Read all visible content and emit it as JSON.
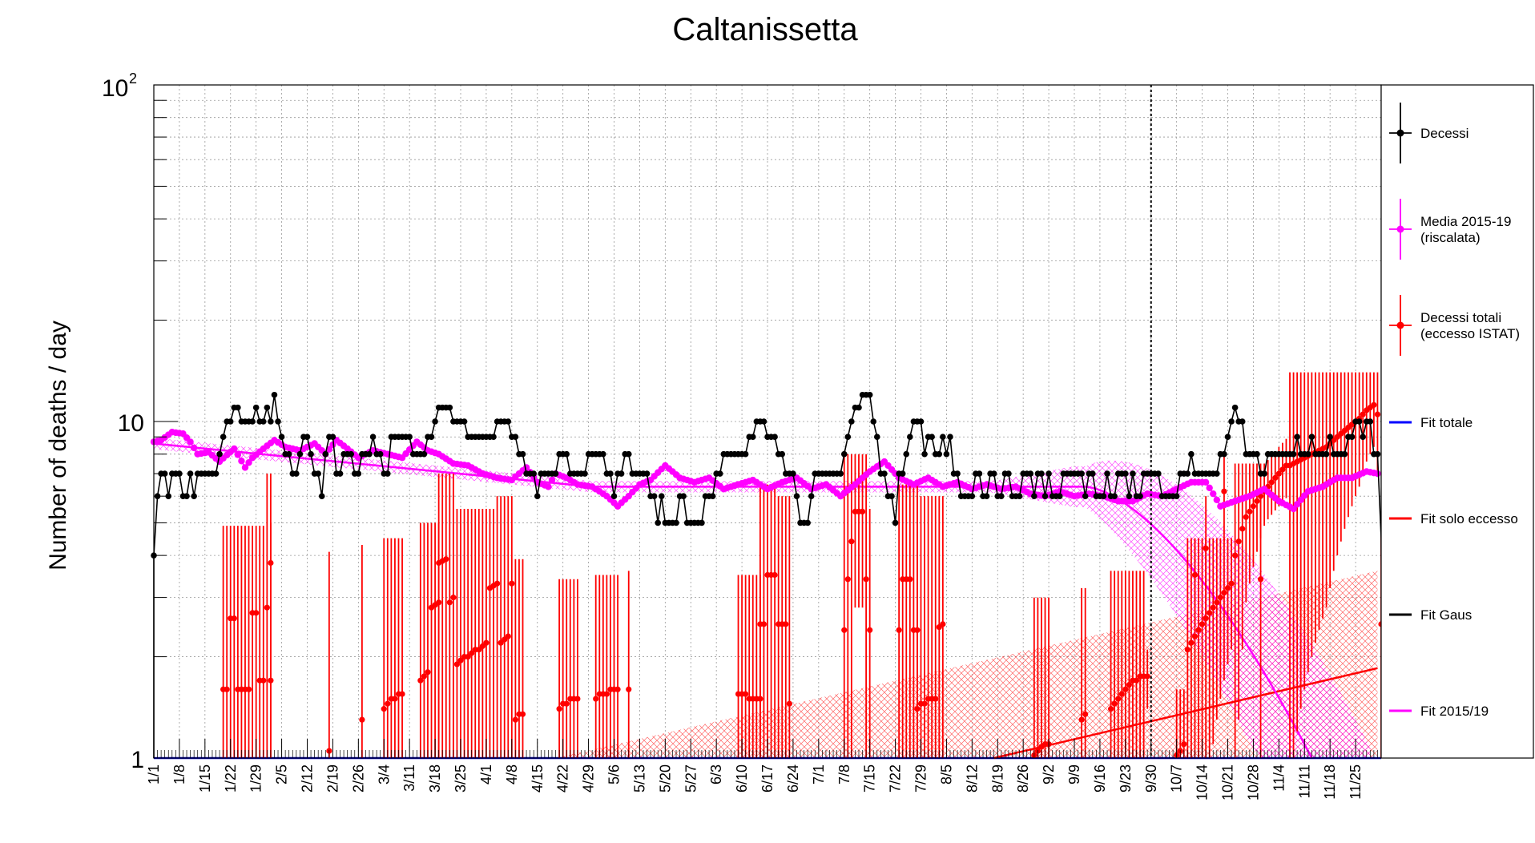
{
  "chart_data": {
    "type": "scatter",
    "title": "Caltanissetta",
    "ylabel": "Number of deaths / day",
    "xlabel": "",
    "yscale": "log",
    "ylim": [
      1,
      100
    ],
    "xlim": [
      0,
      336
    ],
    "ytick_labels": {
      "base": "10",
      "exp": "2",
      "ten": "10",
      "one": "1"
    },
    "grid": true,
    "legend_position": "right",
    "vertical_marker_day": 273,
    "x_ticks": [
      "1/1",
      "1/8",
      "1/15",
      "1/22",
      "1/29",
      "2/5",
      "2/12",
      "2/19",
      "2/26",
      "3/4",
      "3/11",
      "3/18",
      "3/25",
      "4/1",
      "4/8",
      "4/15",
      "4/22",
      "4/29",
      "5/6",
      "5/13",
      "5/20",
      "5/27",
      "6/3",
      "6/10",
      "6/17",
      "6/24",
      "7/1",
      "7/8",
      "7/15",
      "7/22",
      "7/29",
      "8/5",
      "8/12",
      "8/19",
      "8/26",
      "9/2",
      "9/9",
      "9/16",
      "9/23",
      "9/30",
      "10/7",
      "10/14",
      "10/21",
      "10/28",
      "11/4",
      "11/11",
      "11/18",
      "11/25"
    ],
    "colors": {
      "decessi": "#000000",
      "media": "#ff00ff",
      "eccesso": "#ff0000",
      "fit_totale": "#0000ff",
      "fit_eccesso": "#ff0000",
      "fit_gaus": "#000000",
      "fit_2015": "#ff00ff"
    },
    "legend": [
      {
        "key": "decessi",
        "lines": [
          "Decessi"
        ],
        "style": "marker"
      },
      {
        "key": "media",
        "lines": [
          "Media 2015-19",
          "(riscalata)"
        ],
        "style": "marker"
      },
      {
        "key": "eccesso",
        "lines": [
          "Decessi totali",
          "(eccesso ISTAT)"
        ],
        "style": "marker"
      },
      {
        "key": "fit_totale",
        "lines": [
          "Fit totale"
        ],
        "style": "line"
      },
      {
        "key": "fit_eccesso",
        "lines": [
          "Fit solo eccesso"
        ],
        "style": "line"
      },
      {
        "key": "fit_gaus",
        "lines": [
          "Fit Gaus"
        ],
        "style": "line"
      },
      {
        "key": "fit_2015",
        "lines": [
          "Fit 2015/19"
        ],
        "style": "line"
      }
    ],
    "decessi_segments": [
      [
        0,
        4
      ],
      [
        1,
        6
      ],
      [
        2,
        7
      ],
      [
        4,
        6
      ],
      [
        5,
        7
      ],
      [
        8,
        6
      ],
      [
        10,
        7
      ],
      [
        11,
        6
      ],
      [
        12,
        7
      ],
      [
        18,
        8
      ],
      [
        19,
        9
      ],
      [
        20,
        10
      ],
      [
        22,
        11
      ],
      [
        24,
        10
      ],
      [
        28,
        11
      ],
      [
        29,
        10
      ],
      [
        31,
        11
      ],
      [
        32,
        10
      ],
      [
        33,
        12
      ],
      [
        34,
        10
      ],
      [
        35,
        9
      ],
      [
        36,
        8
      ],
      [
        38,
        7
      ],
      [
        40,
        8
      ],
      [
        41,
        9
      ],
      [
        43,
        8
      ],
      [
        44,
        7
      ],
      [
        46,
        6
      ],
      [
        47,
        8
      ],
      [
        48,
        9
      ],
      [
        50,
        7
      ],
      [
        52,
        8
      ],
      [
        55,
        7
      ],
      [
        57,
        8
      ],
      [
        60,
        9
      ],
      [
        61,
        8
      ],
      [
        63,
        7
      ],
      [
        65,
        9
      ],
      [
        71,
        8
      ],
      [
        75,
        9
      ],
      [
        77,
        10
      ],
      [
        78,
        11
      ],
      [
        82,
        10
      ],
      [
        86,
        9
      ],
      [
        94,
        10
      ],
      [
        98,
        9
      ],
      [
        100,
        8
      ],
      [
        102,
        7
      ],
      [
        105,
        6
      ],
      [
        106,
        7
      ],
      [
        108,
        7
      ],
      [
        111,
        8
      ],
      [
        114,
        7
      ],
      [
        119,
        8
      ],
      [
        124,
        7
      ],
      [
        126,
        6
      ],
      [
        127,
        7
      ],
      [
        129,
        8
      ],
      [
        131,
        7
      ],
      [
        136,
        6
      ],
      [
        138,
        5
      ],
      [
        139,
        6
      ],
      [
        140,
        5
      ],
      [
        144,
        6
      ],
      [
        146,
        5
      ],
      [
        151,
        6
      ],
      [
        154,
        7
      ],
      [
        156,
        8
      ],
      [
        163,
        9
      ],
      [
        165,
        10
      ],
      [
        168,
        9
      ],
      [
        171,
        8
      ],
      [
        173,
        7
      ],
      [
        176,
        6
      ],
      [
        177,
        5
      ],
      [
        180,
        6
      ],
      [
        181,
        7
      ],
      [
        189,
        8
      ],
      [
        190,
        9
      ],
      [
        191,
        10
      ],
      [
        192,
        11
      ],
      [
        194,
        12
      ],
      [
        197,
        10
      ],
      [
        198,
        9
      ],
      [
        199,
        7
      ],
      [
        201,
        6
      ],
      [
        203,
        5
      ],
      [
        204,
        7
      ],
      [
        206,
        8
      ],
      [
        207,
        9
      ],
      [
        208,
        10
      ],
      [
        211,
        8
      ],
      [
        212,
        9
      ],
      [
        214,
        8
      ],
      [
        216,
        9
      ],
      [
        217,
        8
      ],
      [
        218,
        9
      ],
      [
        219,
        7
      ],
      [
        221,
        6
      ],
      [
        225,
        7
      ],
      [
        227,
        6
      ],
      [
        229,
        7
      ],
      [
        231,
        6
      ],
      [
        233,
        7
      ],
      [
        235,
        6
      ],
      [
        238,
        7
      ],
      [
        241,
        6
      ],
      [
        242,
        7
      ],
      [
        244,
        6
      ],
      [
        245,
        7
      ],
      [
        246,
        6
      ],
      [
        249,
        7
      ],
      [
        255,
        6
      ],
      [
        256,
        7
      ],
      [
        258,
        6
      ],
      [
        261,
        7
      ],
      [
        262,
        6
      ],
      [
        264,
        7
      ],
      [
        267,
        6
      ],
      [
        268,
        7
      ],
      [
        269,
        6
      ],
      [
        271,
        7
      ],
      [
        276,
        6
      ],
      [
        281,
        7
      ],
      [
        284,
        8
      ],
      [
        285,
        7
      ],
      [
        292,
        8
      ],
      [
        294,
        9
      ],
      [
        295,
        10
      ],
      [
        296,
        11
      ],
      [
        297,
        10
      ],
      [
        299,
        8
      ],
      [
        303,
        7
      ],
      [
        305,
        8
      ],
      [
        313,
        9
      ],
      [
        314,
        8
      ],
      [
        317,
        9
      ],
      [
        318,
        8
      ],
      [
        322,
        9
      ],
      [
        323,
        8
      ],
      [
        327,
        9
      ],
      [
        329,
        10
      ],
      [
        331,
        9
      ],
      [
        332,
        10
      ],
      [
        334,
        8
      ],
      [
        335,
        8
      ]
    ],
    "media_points": [
      [
        0,
        8.7
      ],
      [
        2,
        8.8
      ],
      [
        5,
        9.3
      ],
      [
        8,
        9.2
      ],
      [
        10,
        8.7
      ],
      [
        12,
        8.0
      ],
      [
        15,
        8.1
      ],
      [
        18,
        7.6
      ],
      [
        22,
        8.3
      ],
      [
        25,
        7.3
      ],
      [
        27,
        7.8
      ],
      [
        30,
        8.3
      ],
      [
        33,
        8.8
      ],
      [
        36,
        8.4
      ],
      [
        40,
        8.2
      ],
      [
        44,
        8.6
      ],
      [
        47,
        8.0
      ],
      [
        50,
        8.8
      ],
      [
        53,
        8.3
      ],
      [
        56,
        7.8
      ],
      [
        60,
        8.2
      ],
      [
        64,
        8.0
      ],
      [
        68,
        7.8
      ],
      [
        72,
        8.7
      ],
      [
        75,
        8.2
      ],
      [
        78,
        8.0
      ],
      [
        82,
        7.5
      ],
      [
        86,
        7.4
      ],
      [
        90,
        7.0
      ],
      [
        94,
        6.8
      ],
      [
        98,
        6.7
      ],
      [
        102,
        7.3
      ],
      [
        105,
        6.6
      ],
      [
        108,
        6.4
      ],
      [
        110,
        7.0
      ],
      [
        113,
        6.8
      ],
      [
        116,
        6.5
      ],
      [
        120,
        6.4
      ],
      [
        124,
        6.0
      ],
      [
        127,
        5.6
      ],
      [
        130,
        6.0
      ],
      [
        133,
        6.5
      ],
      [
        136,
        6.7
      ],
      [
        140,
        7.4
      ],
      [
        144,
        6.8
      ],
      [
        148,
        6.6
      ],
      [
        152,
        6.8
      ],
      [
        156,
        6.3
      ],
      [
        160,
        6.5
      ],
      [
        164,
        6.7
      ],
      [
        168,
        6.3
      ],
      [
        172,
        6.6
      ],
      [
        176,
        6.8
      ],
      [
        180,
        6.3
      ],
      [
        184,
        6.5
      ],
      [
        188,
        6.0
      ],
      [
        192,
        6.5
      ],
      [
        196,
        7.1
      ],
      [
        200,
        7.6
      ],
      [
        204,
        6.8
      ],
      [
        208,
        6.5
      ],
      [
        212,
        6.8
      ],
      [
        216,
        6.4
      ],
      [
        220,
        6.6
      ],
      [
        224,
        6.3
      ],
      [
        228,
        6.5
      ],
      [
        232,
        6.3
      ],
      [
        236,
        6.4
      ],
      [
        240,
        6.1
      ],
      [
        244,
        6.0
      ],
      [
        248,
        6.2
      ],
      [
        252,
        6.0
      ],
      [
        256,
        6.1
      ],
      [
        260,
        6.0
      ],
      [
        264,
        5.8
      ],
      [
        268,
        5.8
      ],
      [
        272,
        6.1
      ],
      [
        276,
        6.0
      ],
      [
        280,
        6.3
      ],
      [
        284,
        6.6
      ],
      [
        288,
        6.6
      ],
      [
        292,
        5.6
      ],
      [
        296,
        5.8
      ],
      [
        300,
        6.0
      ],
      [
        304,
        6.3
      ],
      [
        308,
        5.8
      ],
      [
        312,
        5.5
      ],
      [
        316,
        6.2
      ],
      [
        320,
        6.4
      ],
      [
        324,
        6.8
      ],
      [
        328,
        6.8
      ],
      [
        332,
        7.1
      ],
      [
        335,
        7.0
      ]
    ],
    "eccesso_groups": [
      {
        "x": [
          19,
          24
        ],
        "levels": [
          1.6,
          1.6,
          2.6,
          2.6,
          1.6,
          1.6
        ],
        "err_hi": 4.9
      },
      {
        "x": [
          25,
          30
        ],
        "levels": [
          1.6,
          1.6,
          2.7,
          2.7,
          1.7,
          1.7
        ],
        "err_hi": 4.9
      },
      {
        "x": [
          31,
          32
        ],
        "levels": [
          2.8,
          3.8
        ],
        "err_hi": 7.0
      },
      {
        "x": [
          32,
          32
        ],
        "levels": [
          1.7
        ],
        "err_hi": 5.0
      },
      {
        "x": [
          48,
          48
        ],
        "levels": [
          1.05
        ],
        "err_hi": 4.1
      },
      {
        "x": [
          57,
          57
        ],
        "levels": [
          1.3
        ],
        "err_hi": 4.3
      },
      {
        "x": [
          63,
          68
        ],
        "levels": [
          1.4,
          1.45,
          1.5,
          1.5,
          1.55,
          1.55
        ],
        "err_hi": 4.5
      },
      {
        "x": [
          73,
          78
        ],
        "levels": [
          1.7,
          1.75,
          1.8,
          2.8,
          2.85,
          2.9
        ],
        "err_hi": 5.0
      },
      {
        "x": [
          78,
          82
        ],
        "levels": [
          3.8,
          3.85,
          3.9,
          2.9,
          3.0
        ],
        "err_hi": 7.0
      },
      {
        "x": [
          83,
          93
        ],
        "levels": [
          1.9,
          1.95,
          2.0,
          2.0,
          2.05,
          2.1,
          2.1,
          2.15,
          2.2,
          3.2,
          3.25
        ],
        "err_hi": 5.5
      },
      {
        "x": [
          94,
          98
        ],
        "levels": [
          3.3,
          2.2,
          2.25,
          2.3,
          3.3
        ],
        "err_hi": 6.0
      },
      {
        "x": [
          99,
          101
        ],
        "levels": [
          1.3,
          1.35,
          1.35
        ],
        "err_hi": 3.9
      },
      {
        "x": [
          111,
          116
        ],
        "levels": [
          1.4,
          1.45,
          1.45,
          1.5,
          1.5,
          1.5
        ],
        "err_hi": 3.4
      },
      {
        "x": [
          121,
          127
        ],
        "levels": [
          1.5,
          1.55,
          1.55,
          1.55,
          1.6,
          1.6,
          1.6
        ],
        "err_hi": 3.5
      },
      {
        "x": [
          130,
          130
        ],
        "levels": [
          1.6
        ],
        "err_hi": 3.6
      },
      {
        "x": [
          160,
          166
        ],
        "levels": [
          1.55,
          1.55,
          1.55,
          1.5,
          1.5,
          1.5,
          1.5
        ],
        "err_hi": 3.5
      },
      {
        "x": [
          166,
          170
        ],
        "levels": [
          2.5,
          2.5,
          3.5,
          3.5,
          3.5
        ],
        "err_hi": 6.5
      },
      {
        "x": [
          171,
          174
        ],
        "levels": [
          2.5,
          2.5,
          2.5,
          1.45
        ],
        "err_hi": 6.0
      },
      {
        "x": [
          189,
          195
        ],
        "levels": [
          2.4,
          3.4,
          4.4,
          5.4,
          5.4,
          5.4,
          3.4
        ],
        "err_hi": 8.0
      },
      {
        "x": [
          196,
          196
        ],
        "levels": [
          2.4
        ],
        "err_hi": 5.5
      },
      {
        "x": [
          204,
          209
        ],
        "levels": [
          2.4,
          3.4,
          3.4,
          3.4,
          2.4,
          2.4
        ],
        "err_hi": 6.5
      },
      {
        "x": [
          209,
          216
        ],
        "levels": [
          1.4,
          1.45,
          1.45,
          1.5,
          1.5,
          1.5,
          2.45,
          2.5
        ],
        "err_hi": 6.0
      },
      {
        "x": [
          241,
          245
        ],
        "levels": [
          1.02,
          1.05,
          1.08,
          1.1,
          1.1
        ],
        "err_hi": 3.0
      },
      {
        "x": [
          254,
          255
        ],
        "levels": [
          1.3,
          1.35
        ],
        "err_hi": 3.2
      },
      {
        "x": [
          262,
          271
        ],
        "levels": [
          1.4,
          1.45,
          1.5,
          1.55,
          1.6,
          1.65,
          1.7,
          1.7,
          1.75,
          1.75
        ],
        "err_hi": 3.6
      },
      {
        "x": [
          280,
          282
        ],
        "levels": [
          1.02,
          1.05,
          1.1
        ],
        "err_hi": 1.6
      },
      {
        "x": [
          283,
          295
        ],
        "levels": [
          2.1,
          2.2,
          2.3,
          2.4,
          2.5,
          2.6,
          2.7,
          2.8,
          2.9,
          3.0,
          3.1,
          3.2,
          3.3
        ],
        "err_hi": 4.5
      },
      {
        "x": [
          296,
          310
        ],
        "levels": [
          4.0,
          4.4,
          4.8,
          5.2,
          5.4,
          5.6,
          5.8,
          6.0,
          6.2,
          6.4,
          6.6,
          6.8,
          7.0,
          7.2,
          7.4
        ],
        "err_hi": 7.5
      },
      {
        "x": [
          311,
          335
        ],
        "levels": [
          7.4,
          7.5,
          7.6,
          7.7,
          7.8,
          7.9,
          8.0,
          8.1,
          8.2,
          8.3,
          8.4,
          8.6,
          8.8,
          9.0,
          9.2,
          9.4,
          9.6,
          9.8,
          10.0,
          10.2,
          10.5,
          10.8,
          11.0,
          11.2,
          10.5
        ],
        "err_hi": 14.0
      },
      {
        "x": [
          272,
          272
        ],
        "levels": [
          1.75
        ],
        "err_hi": 1.9
      },
      {
        "x": [
          285,
          285
        ],
        "levels": [
          3.5
        ],
        "err_hi": 4.5
      },
      {
        "x": [
          288,
          288
        ],
        "levels": [
          4.2
        ],
        "err_hi": 6.0
      },
      {
        "x": [
          293,
          293
        ],
        "levels": [
          6.2
        ],
        "err_hi": 8.0
      },
      {
        "x": [
          303,
          303
        ],
        "levels": [
          3.4
        ],
        "err_hi": 6.0
      },
      {
        "x": [
          336,
          336
        ],
        "levels": [
          2.5
        ],
        "err_hi": 5.0
      }
    ],
    "fit_2015": {
      "start": 8.6,
      "mid": 6.4,
      "bend_day": 255,
      "end_value": 1.0,
      "end_day": 317
    },
    "fit_eccesso": {
      "start_day": 230,
      "start_value": 1.0,
      "end_day": 335,
      "end_value": 1.85
    }
  }
}
